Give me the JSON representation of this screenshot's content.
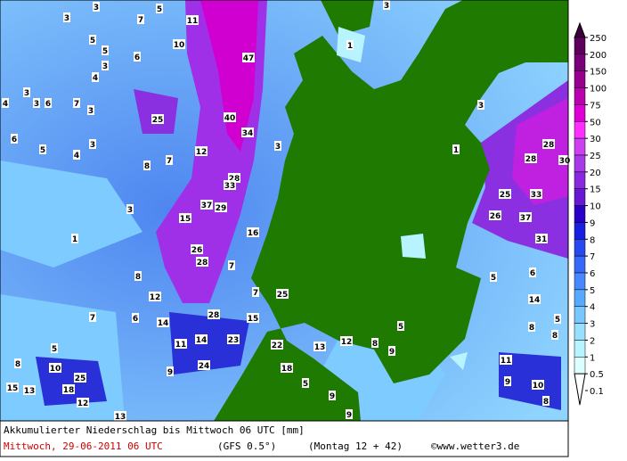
{
  "map": {
    "labels": [
      3,
      7,
      5,
      11,
      3,
      5,
      5,
      3,
      6,
      10,
      47,
      1,
      3,
      4,
      3,
      3,
      6,
      7,
      4,
      3,
      25,
      40,
      34,
      6,
      5,
      4,
      3,
      8,
      7,
      12,
      3,
      1,
      3,
      28,
      28,
      30,
      28,
      33,
      25,
      33,
      37,
      29,
      3,
      15,
      26,
      37,
      1,
      16,
      31,
      26,
      28,
      7,
      8,
      5,
      6,
      12,
      7,
      25,
      14,
      7,
      6,
      14,
      28,
      15,
      5,
      8,
      5,
      8,
      5,
      11,
      14,
      23,
      22,
      13,
      12,
      8,
      9,
      8,
      10,
      9,
      24,
      18,
      11,
      25,
      9,
      10,
      15,
      13,
      18,
      5,
      9,
      12,
      8,
      13,
      9
    ]
  },
  "legend": {
    "values": [
      250,
      200,
      150,
      100,
      75,
      50,
      30,
      25,
      20,
      15,
      10,
      9,
      8,
      7,
      6,
      5,
      4,
      3,
      2,
      1,
      0.5,
      0.1
    ],
    "colors": [
      "#3c003c",
      "#5c005c",
      "#7a007a",
      "#98008e",
      "#bb00b0",
      "#dd00d6",
      "#ff30ff",
      "#cc40f0",
      "#a838e8",
      "#8a28e0",
      "#6818d0",
      "#2a00c8",
      "#1820e0",
      "#2848f0",
      "#3868f8",
      "#4888ff",
      "#58a8ff",
      "#78c8ff",
      "#98e0ff",
      "#b8f4ff",
      "#dcffff",
      "#ffffff"
    ]
  },
  "footer": {
    "title": "Akkumulierter Niederschlag bis Mittwoch 06 UTC [mm]",
    "date": "Mittwoch, 29-06-2011  06 UTC",
    "model": "(GFS 0.5°)",
    "run": "(Montag 12 + 42)",
    "credit": "©www.wetter3.de"
  }
}
